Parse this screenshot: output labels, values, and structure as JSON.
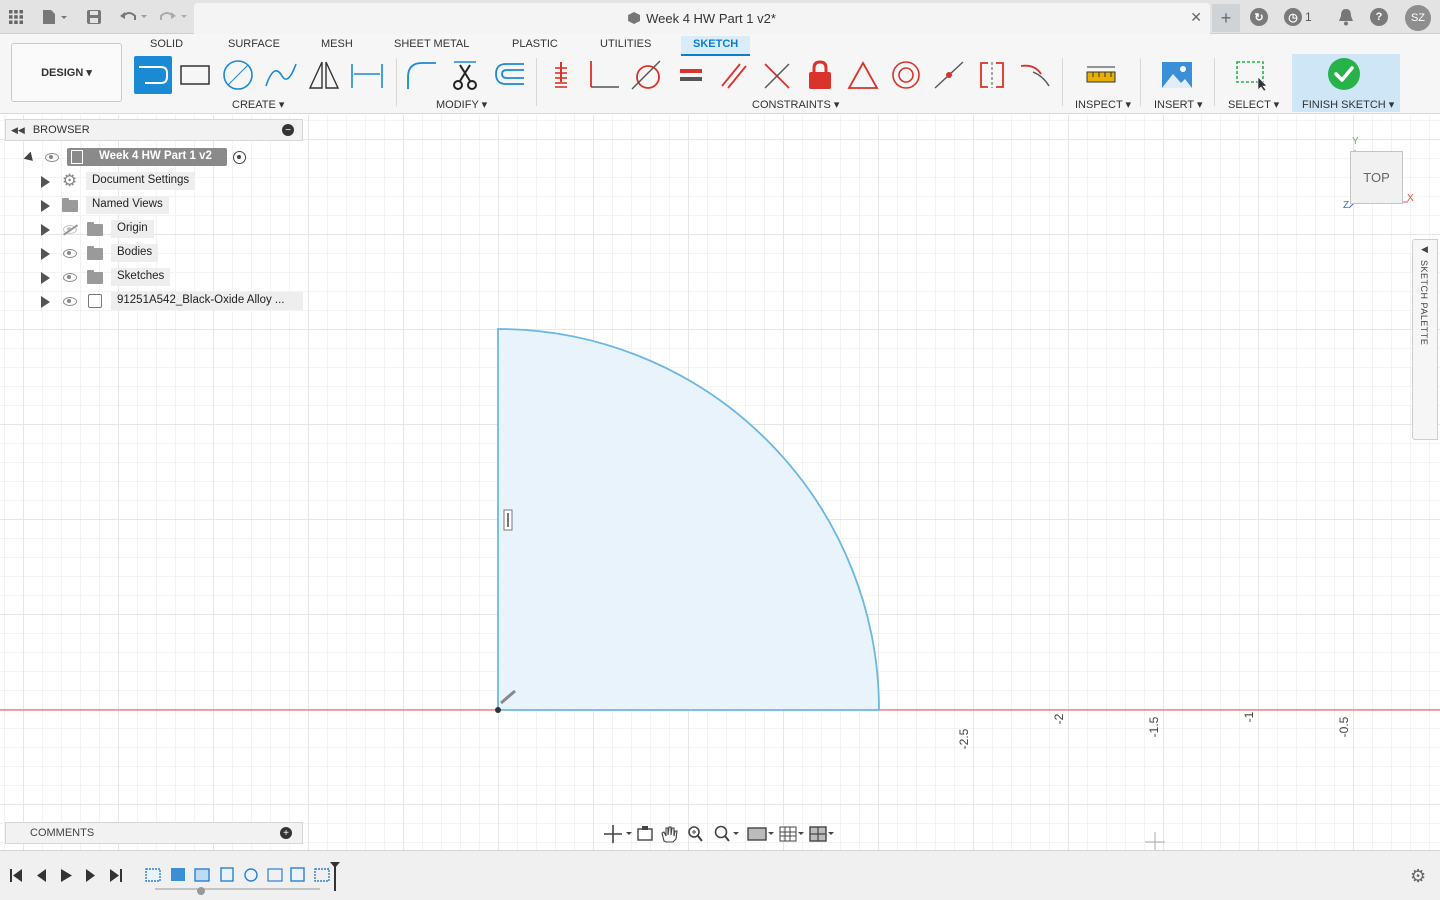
{
  "titlebar": {
    "document_title": "Week 4 HW Part 1 v2*",
    "notification_count": "1",
    "user_initials": "SZ"
  },
  "toolbar": {
    "workspace": "DESIGN",
    "tabs": [
      "SOLID",
      "SURFACE",
      "MESH",
      "SHEET METAL",
      "PLASTIC",
      "UTILITIES",
      "SKETCH"
    ],
    "active_tab": "SKETCH",
    "groups": {
      "create": "CREATE",
      "modify": "MODIFY",
      "constraints": "CONSTRAINTS",
      "inspect": "INSPECT",
      "insert": "INSERT",
      "select": "SELECT",
      "finish": "FINISH SKETCH"
    }
  },
  "browser": {
    "title": "BROWSER",
    "root": "Week 4 HW Part 1 v2",
    "items": [
      {
        "label": "Document Settings",
        "icon": "gear-icon"
      },
      {
        "label": "Named Views",
        "icon": "folder-icon"
      },
      {
        "label": "Origin",
        "icon": "folder-icon",
        "hidden": true
      },
      {
        "label": "Bodies",
        "icon": "folder-icon"
      },
      {
        "label": "Sketches",
        "icon": "folder-icon"
      },
      {
        "label": "91251A542_Black-Oxide Alloy ...",
        "icon": "component-icon"
      }
    ]
  },
  "comments": {
    "title": "COMMENTS"
  },
  "viewcube": {
    "face": "TOP",
    "axis_x": "X",
    "axis_y": "Y",
    "axis_z": "Z"
  },
  "sketch_palette": {
    "title": "SKETCH PALETTE"
  },
  "axis_ticks": [
    "-2.5",
    "-2",
    "-1.5",
    "-1",
    "-0.5"
  ],
  "colors": {
    "accent": "#0a7fd1",
    "finish_green": "#27b24a",
    "sketch_line": "#6ab8e3",
    "sketch_fill": "#e8f3fb",
    "constraint_red": "#d9332b",
    "x_axis": "#e05050"
  }
}
